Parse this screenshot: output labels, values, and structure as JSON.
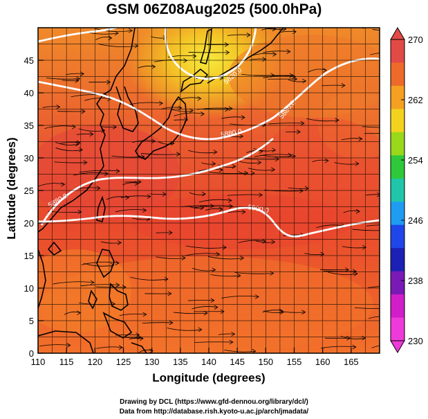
{
  "title": "GSM 06Z08Aug2025 (500.0hPa)",
  "axes": {
    "xlabel": "Longitude (degrees)",
    "ylabel": "Latitude (degrees)",
    "x_ticks": [
      "110",
      "115",
      "120",
      "125",
      "130",
      "135",
      "140",
      "145",
      "150",
      "155",
      "160",
      "165"
    ],
    "y_ticks": [
      "0",
      "5",
      "10",
      "15",
      "20",
      "25",
      "30",
      "35",
      "40",
      "45"
    ],
    "xlim": [
      110,
      170
    ],
    "ylim": [
      0,
      50
    ]
  },
  "colorbar": {
    "min": 230,
    "max": 270,
    "tick_labels": [
      "270",
      "262",
      "254",
      "246",
      "238",
      "230"
    ],
    "colors": [
      "#e24a46",
      "#ee6a2a",
      "#f5a020",
      "#f2d21e",
      "#9ad81c",
      "#2fc83a",
      "#21c6a8",
      "#1f9cf2",
      "#1f46e8",
      "#1c20b4",
      "#7a1ab6",
      "#d21ec8",
      "#ee3ad8"
    ]
  },
  "contours": [
    {
      "label": "5880.0"
    },
    {
      "label": "5820.0"
    },
    {
      "label": "5880.0"
    },
    {
      "label": "5880.0"
    },
    {
      "label": "5900.0"
    }
  ],
  "credits": {
    "line1": "Drawing by DCL (https://www.gfd-dennou.org/library/dcl/)",
    "line2": "Data from http://database.rish.kyoto-u.ac.jp/arch/jmadata/"
  }
}
